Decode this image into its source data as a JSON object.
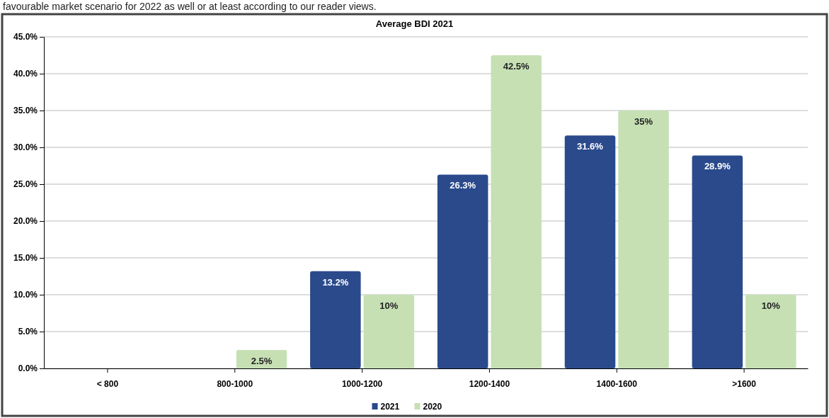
{
  "chart_data": {
    "type": "bar",
    "title": "Average BDI 2021",
    "annotations": [
      "favourable market scenario for 2022 as well or at least according to our reader views."
    ],
    "categories": [
      "< 800",
      "800-1000",
      "1000-1200",
      "1200-1400",
      "1400-1600",
      ">1600"
    ],
    "series": [
      {
        "name": "2021",
        "color": "#2a4a8c",
        "values": [
          0,
          0,
          13.2,
          26.3,
          31.6,
          28.9
        ],
        "value_labels": [
          null,
          null,
          "13.2%",
          "26.3%",
          "31.6%",
          "28.9%"
        ]
      },
      {
        "name": "2020",
        "color": "#c6e0b4",
        "values": [
          0,
          2.5,
          10,
          42.5,
          35,
          10
        ],
        "value_labels": [
          null,
          "2.5%",
          "10%",
          "42.5%",
          "35%",
          "10%"
        ]
      }
    ],
    "ylim": [
      0,
      45
    ],
    "yticks": [
      {
        "value": 0,
        "label": "0.0%"
      },
      {
        "value": 5,
        "label": "5.0%"
      },
      {
        "value": 10,
        "label": "10.0%"
      },
      {
        "value": 15,
        "label": "15.0%"
      },
      {
        "value": 20,
        "label": "20.0%"
      },
      {
        "value": 25,
        "label": "25.0%"
      },
      {
        "value": 30,
        "label": "30.0%"
      },
      {
        "value": 35,
        "label": "35.0%"
      },
      {
        "value": 40,
        "label": "40.0%"
      },
      {
        "value": 45,
        "label": "45.0%"
      }
    ],
    "grid": "y",
    "legend": "bottom"
  }
}
